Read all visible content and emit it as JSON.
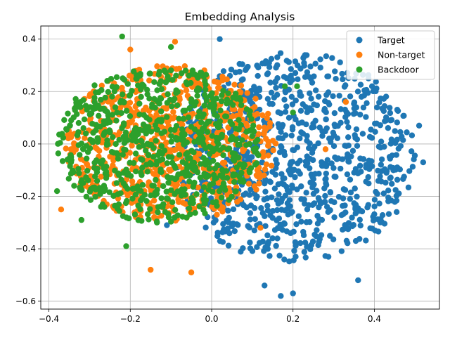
{
  "chart_data": {
    "type": "scatter",
    "title": "Embedding Analysis",
    "xlabel": "",
    "ylabel": "",
    "xlim": [
      -0.42,
      0.56
    ],
    "ylim": [
      -0.63,
      0.45
    ],
    "xticks": [
      -0.4,
      -0.2,
      0.0,
      0.2,
      0.4
    ],
    "yticks": [
      -0.6,
      -0.4,
      -0.2,
      0.0,
      0.2,
      0.4
    ],
    "xtick_labels": [
      "−0.4",
      "−0.2",
      "0.0",
      "0.2",
      "0.4"
    ],
    "ytick_labels": [
      "−0.6",
      "−0.4",
      "−0.2",
      "0.0",
      "0.2",
      "0.4"
    ],
    "grid": true,
    "legend_position": "top-right",
    "series": [
      {
        "name": "Target",
        "color": "#1f77b4",
        "cluster": {
          "center": [
            0.2,
            -0.05
          ],
          "rx": 0.3,
          "ry": 0.4,
          "count": 900
        },
        "points": [
          [
            0.36,
            -0.52
          ],
          [
            0.17,
            -0.58
          ],
          [
            0.2,
            -0.57
          ],
          [
            0.02,
            0.4
          ],
          [
            0.51,
            0.07
          ],
          [
            0.52,
            -0.07
          ],
          [
            -0.11,
            -0.31
          ],
          [
            0.13,
            -0.54
          ]
        ]
      },
      {
        "name": "Non-target",
        "color": "#ff7f0e",
        "cluster": {
          "center": [
            -0.1,
            0.0
          ],
          "rx": 0.26,
          "ry": 0.3,
          "count": 800
        },
        "points": [
          [
            -0.37,
            -0.25
          ],
          [
            -0.09,
            0.39
          ],
          [
            -0.2,
            0.36
          ],
          [
            -0.15,
            -0.48
          ],
          [
            -0.05,
            -0.49
          ],
          [
            0.33,
            0.16
          ],
          [
            0.28,
            -0.02
          ],
          [
            0.12,
            -0.32
          ]
        ]
      },
      {
        "name": "Backdoor",
        "color": "#2ca02c",
        "cluster": {
          "center": [
            -0.13,
            0.0
          ],
          "rx": 0.25,
          "ry": 0.3,
          "count": 700
        },
        "points": [
          [
            -0.38,
            -0.18
          ],
          [
            -0.22,
            0.41
          ],
          [
            -0.21,
            -0.39
          ],
          [
            0.18,
            0.22
          ],
          [
            0.21,
            0.22
          ],
          [
            0.2,
            0.12
          ],
          [
            -0.32,
            -0.29
          ],
          [
            -0.1,
            0.37
          ]
        ]
      }
    ]
  }
}
